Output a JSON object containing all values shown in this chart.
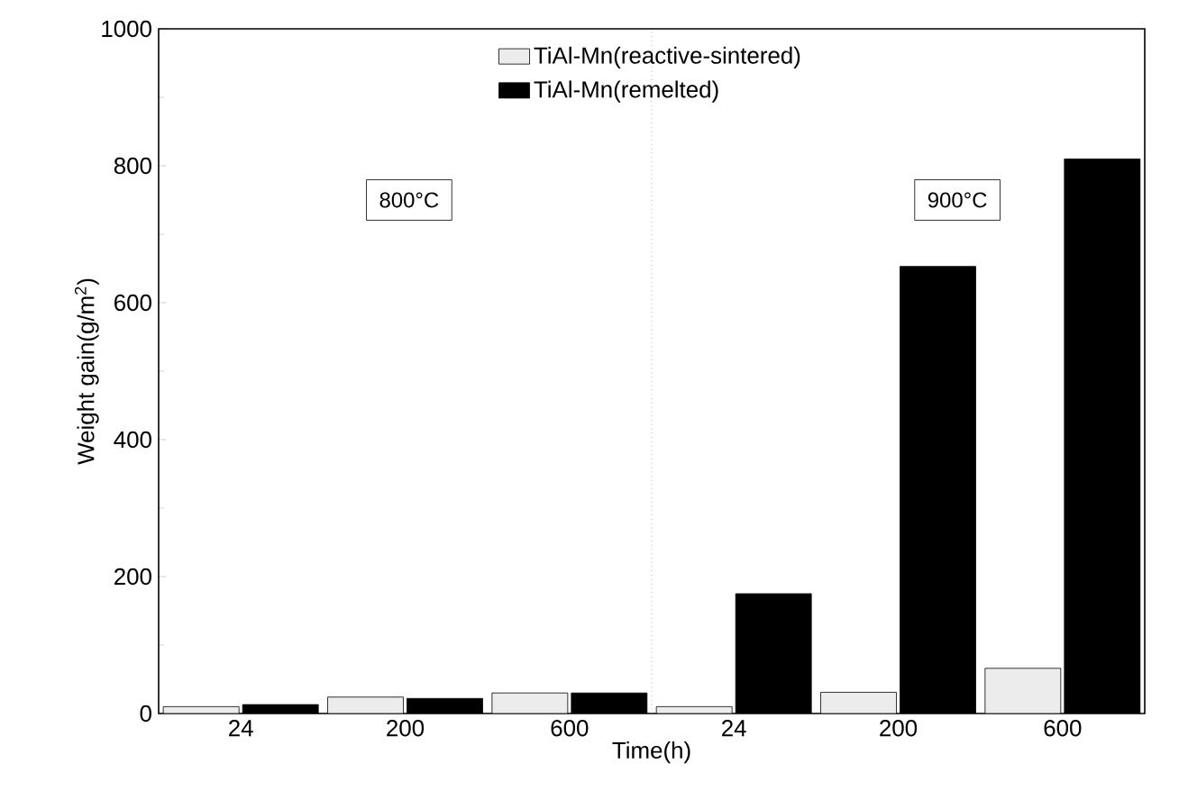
{
  "chart_data": {
    "type": "bar",
    "xlabel": "Time(h)",
    "ylabel": "Weight gain(g/m$^{2}$)",
    "categories": [
      "24",
      "200",
      "600",
      "24",
      "200",
      "600"
    ],
    "series": [
      {
        "name": "TiAl-Mn(reactive-sintered)",
        "color": "#ececec",
        "values": [
          10,
          24,
          30,
          10,
          31,
          66
        ]
      },
      {
        "name": "TiAl-Mn(remelted)",
        "color": "#000000",
        "values": [
          13,
          22,
          30,
          175,
          653,
          810
        ]
      }
    ],
    "ylim": [
      0,
      1000
    ],
    "yticks": [
      0,
      200,
      400,
      600,
      800,
      1000
    ],
    "annotations": [
      "800°C",
      "900°C"
    ],
    "legend": "top"
  }
}
